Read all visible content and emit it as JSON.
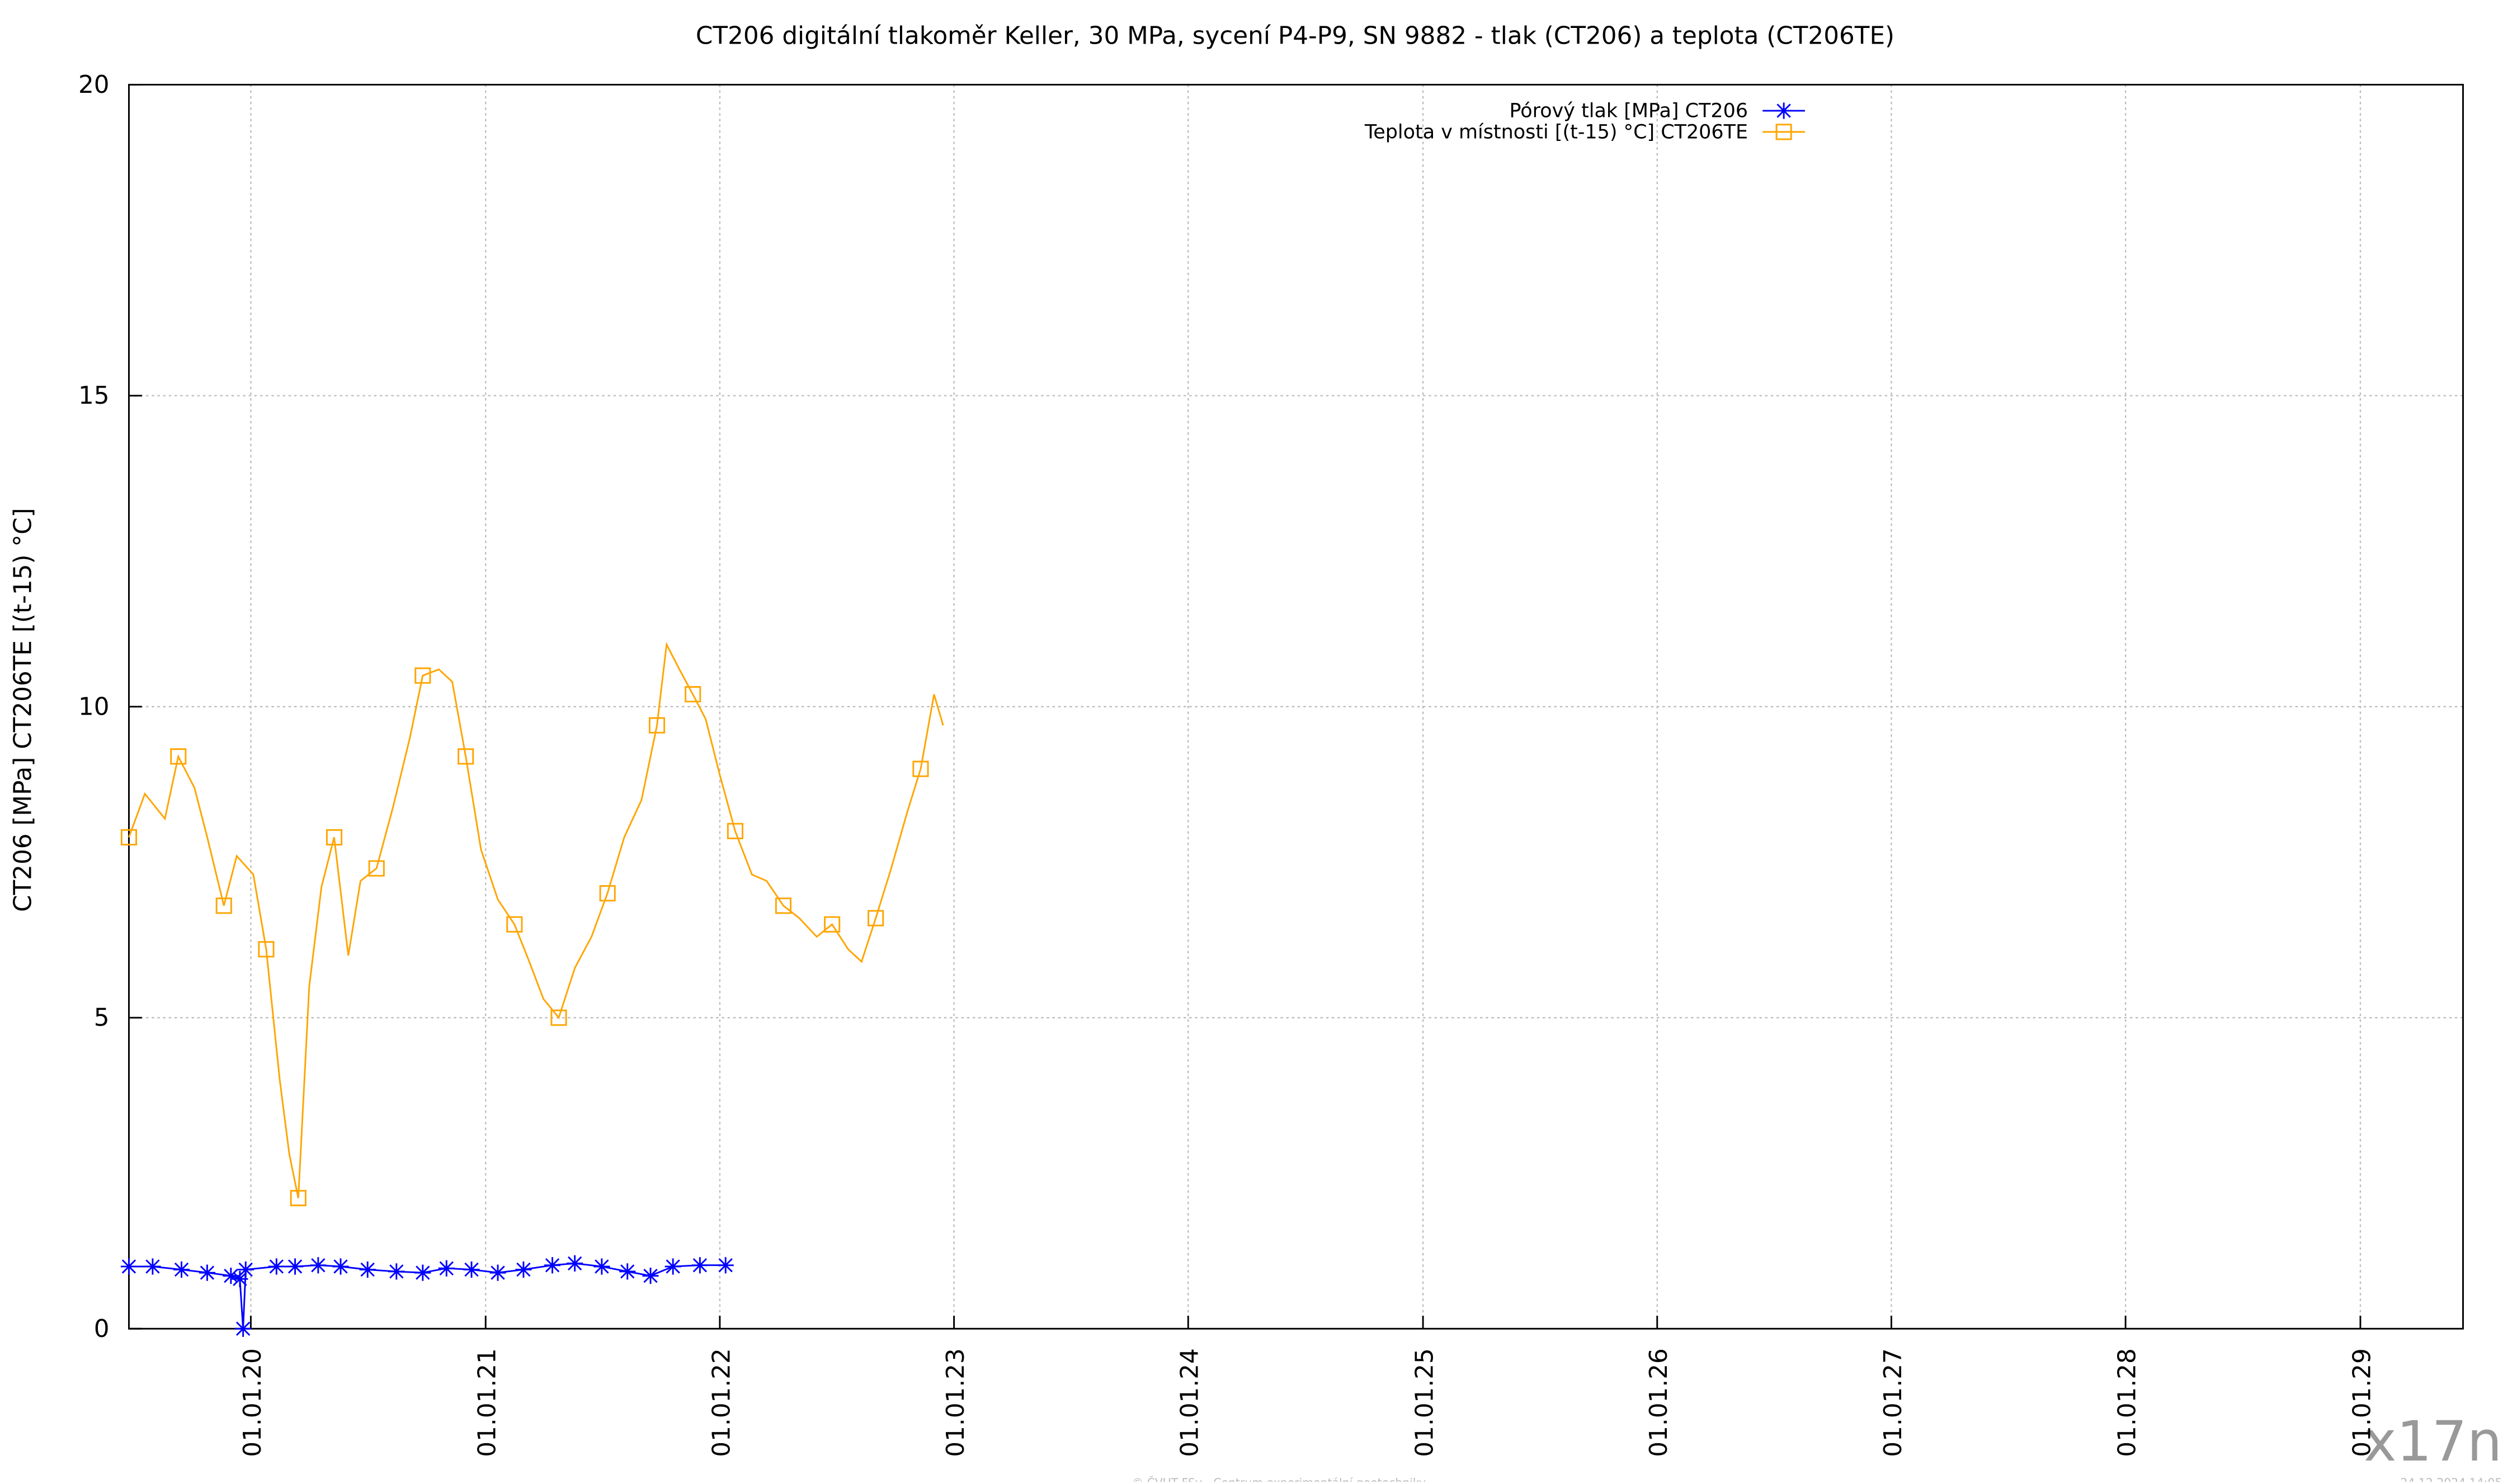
{
  "chart_data": {
    "type": "line",
    "title": "CT206 digitální tlakoměr Keller, 30 MPa, sycení P4-P9, SN 9882 - tlak (CT206) a teplota (CT206TE)",
    "ylabel": "CT206 [MPa] CT206TE [(t-15) °C]",
    "watermark": "x17n",
    "credit": "© ČVUT FSv - Centrum experimentální geotechniky",
    "timestamp": "24.12.2024 14:05",
    "ylim": [
      0,
      20
    ],
    "yticks": [
      0,
      5,
      10,
      15,
      20
    ],
    "xlim": [
      "2019-06-25",
      "2029-06-10"
    ],
    "xticks": [
      {
        "value": "2020-01-01",
        "label": "01.01.20"
      },
      {
        "value": "2021-01-01",
        "label": "01.01.21"
      },
      {
        "value": "2022-01-01",
        "label": "01.01.22"
      },
      {
        "value": "2023-01-01",
        "label": "01.01.23"
      },
      {
        "value": "2024-01-01",
        "label": "01.01.24"
      },
      {
        "value": "2025-01-01",
        "label": "01.01.25"
      },
      {
        "value": "2026-01-01",
        "label": "01.01.26"
      },
      {
        "value": "2027-01-01",
        "label": "01.01.27"
      },
      {
        "value": "2028-01-01",
        "label": "01.01.28"
      },
      {
        "value": "2029-01-01",
        "label": "01.01.29"
      }
    ],
    "grid": true,
    "legend": "top-right",
    "series": [
      {
        "name": "Pórový tlak [MPa] CT206",
        "color": "#0000ff",
        "marker": "star",
        "x": [
          "2019-06-25",
          "2019-08-01",
          "2019-09-15",
          "2019-10-25",
          "2019-12-01",
          "2019-12-15",
          "2019-12-20",
          "2019-12-24",
          "2020-02-10",
          "2020-03-10",
          "2020-04-15",
          "2020-05-20",
          "2020-07-01",
          "2020-08-15",
          "2020-09-25",
          "2020-11-01",
          "2020-12-10",
          "2021-01-20",
          "2021-03-01",
          "2021-04-15",
          "2021-05-20",
          "2021-07-01",
          "2021-08-10",
          "2021-09-15",
          "2021-10-20",
          "2021-12-01",
          "2022-01-10"
        ],
        "values": [
          1.0,
          1.0,
          0.95,
          0.9,
          0.85,
          0.8,
          0.0,
          0.95,
          1.0,
          1.0,
          1.02,
          1.0,
          0.95,
          0.92,
          0.9,
          0.97,
          0.95,
          0.9,
          0.95,
          1.02,
          1.05,
          1.0,
          0.92,
          0.85,
          1.0,
          1.02,
          1.02
        ]
      },
      {
        "name": "Teplota v místnosti [(t-15) °C] CT206TE",
        "color": "#ffa500",
        "marker": "square",
        "x": [
          "2019-06-25",
          "2019-07-20",
          "2019-08-20",
          "2019-09-10",
          "2019-10-05",
          "2019-10-25",
          "2019-11-20",
          "2019-12-10",
          "2020-01-05",
          "2020-01-25",
          "2020-02-15",
          "2020-03-01",
          "2020-03-15",
          "2020-04-01",
          "2020-04-20",
          "2020-05-10",
          "2020-06-01",
          "2020-06-20",
          "2020-07-15",
          "2020-08-10",
          "2020-09-05",
          "2020-09-25",
          "2020-10-20",
          "2020-11-10",
          "2020-12-01",
          "2020-12-25",
          "2021-01-20",
          "2021-02-15",
          "2021-03-10",
          "2021-04-01",
          "2021-04-25",
          "2021-05-20",
          "2021-06-15",
          "2021-07-10",
          "2021-08-05",
          "2021-09-01",
          "2021-09-25",
          "2021-10-10",
          "2021-10-30",
          "2021-11-20",
          "2021-12-10",
          "2022-01-01",
          "2022-01-25",
          "2022-02-20",
          "2022-03-15",
          "2022-04-10",
          "2022-05-05",
          "2022-06-01",
          "2022-06-25",
          "2022-07-20",
          "2022-08-10",
          "2022-09-01",
          "2022-09-25",
          "2022-10-20",
          "2022-11-10",
          "2022-12-01",
          "2022-12-15"
        ],
        "values": [
          7.9,
          8.6,
          8.2,
          9.2,
          8.7,
          7.9,
          6.8,
          7.6,
          7.3,
          6.1,
          4.0,
          2.8,
          2.1,
          5.5,
          7.1,
          7.9,
          6.0,
          7.2,
          7.4,
          8.4,
          9.5,
          10.5,
          10.6,
          10.4,
          9.2,
          7.7,
          6.9,
          6.5,
          5.9,
          5.3,
          5.0,
          5.8,
          6.3,
          7.0,
          7.9,
          8.5,
          9.7,
          11.0,
          10.6,
          10.2,
          9.8,
          8.9,
          8.0,
          7.3,
          7.2,
          6.8,
          6.6,
          6.3,
          6.5,
          6.1,
          5.9,
          6.6,
          7.4,
          8.3,
          9.0,
          10.2,
          9.7
        ]
      }
    ]
  }
}
